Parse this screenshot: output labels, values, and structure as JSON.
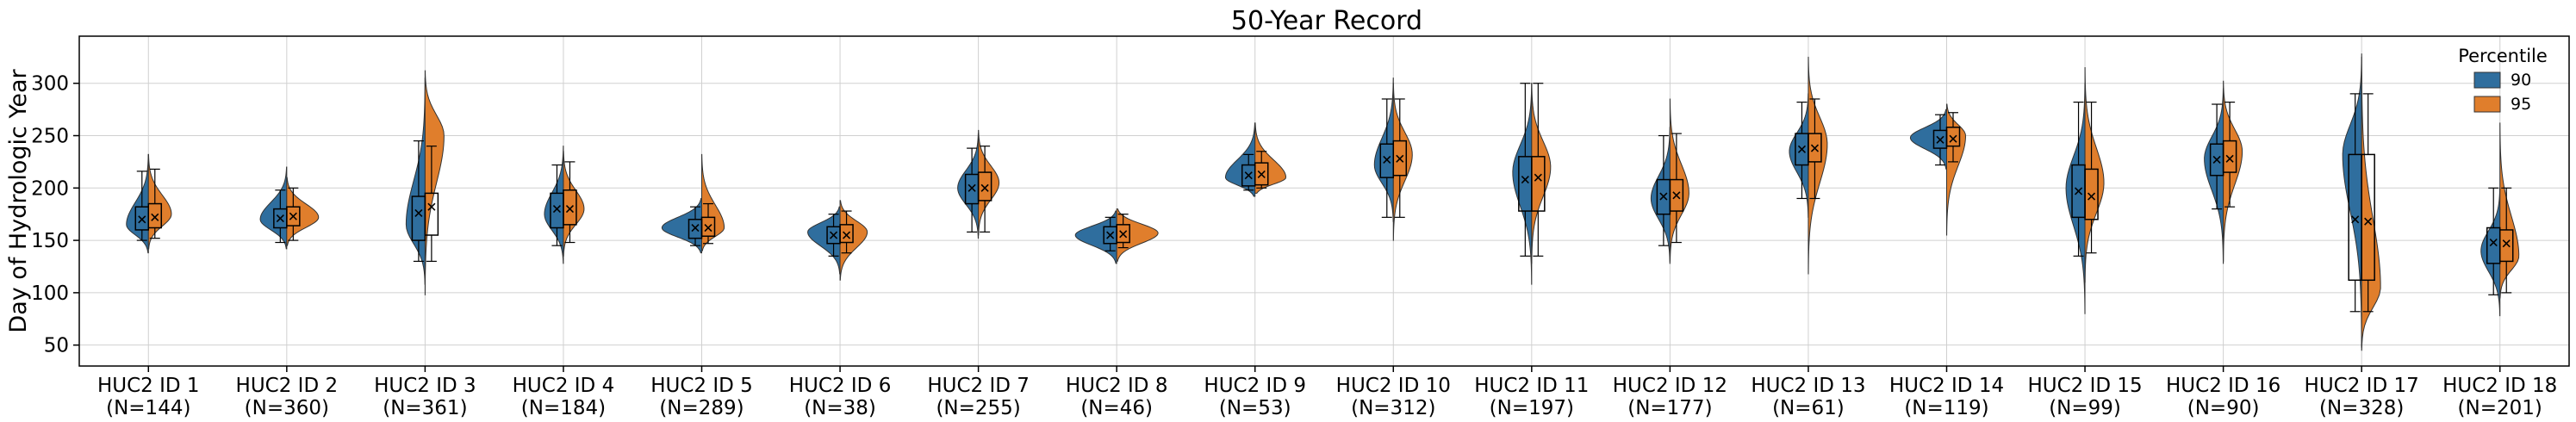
{
  "chart_data": {
    "type": "violin",
    "title": "50-Year Record",
    "xlabel": "",
    "ylabel": "Day of Hydrologic Year",
    "ylim": [
      30,
      345
    ],
    "yticks": [
      50,
      100,
      150,
      200,
      250,
      300
    ],
    "grid": true,
    "legend": {
      "title": "Percentile",
      "placement": "top-right"
    },
    "colors": {
      "90": "#2f6e9e",
      "95": "#e07e2c"
    },
    "categories": [
      {
        "label": "HUC2 ID 1",
        "n": "(N=144)"
      },
      {
        "label": "HUC2 ID 2",
        "n": "(N=360)"
      },
      {
        "label": "HUC2 ID 3",
        "n": "(N=361)"
      },
      {
        "label": "HUC2 ID 4",
        "n": "(N=184)"
      },
      {
        "label": "HUC2 ID 5",
        "n": "(N=289)"
      },
      {
        "label": "HUC2 ID 6",
        "n": "(N=38)"
      },
      {
        "label": "HUC2 ID 7",
        "n": "(N=255)"
      },
      {
        "label": "HUC2 ID 8",
        "n": "(N=46)"
      },
      {
        "label": "HUC2 ID 9",
        "n": "(N=53)"
      },
      {
        "label": "HUC2 ID 10",
        "n": "(N=312)"
      },
      {
        "label": "HUC2 ID 11",
        "n": "(N=197)"
      },
      {
        "label": "HUC2 ID 12",
        "n": "(N=177)"
      },
      {
        "label": "HUC2 ID 13",
        "n": "(N=61)"
      },
      {
        "label": "HUC2 ID 14",
        "n": "(N=119)"
      },
      {
        "label": "HUC2 ID 15",
        "n": "(N=99)"
      },
      {
        "label": "HUC2 ID 16",
        "n": "(N=90)"
      },
      {
        "label": "HUC2 ID 17",
        "n": "(N=328)"
      },
      {
        "label": "HUC2 ID 18",
        "n": "(N=201)"
      }
    ],
    "series": [
      {
        "name": "90",
        "stats": [
          {
            "vmin": 138,
            "vmax": 232,
            "wlo": 150,
            "whi": 216,
            "q1": 160,
            "q3": 182,
            "mean": 170,
            "mode": 165
          },
          {
            "vmin": 142,
            "vmax": 220,
            "wlo": 148,
            "whi": 198,
            "q1": 162,
            "q3": 180,
            "mean": 171,
            "mode": 170
          },
          {
            "vmin": 108,
            "vmax": 305,
            "wlo": 130,
            "whi": 245,
            "q1": 150,
            "q3": 192,
            "mean": 176,
            "mode": 165
          },
          {
            "vmin": 128,
            "vmax": 240,
            "wlo": 145,
            "whi": 222,
            "q1": 162,
            "q3": 195,
            "mean": 180,
            "mode": 175
          },
          {
            "vmin": 138,
            "vmax": 190,
            "wlo": 145,
            "whi": 182,
            "q1": 152,
            "q3": 170,
            "mean": 162,
            "mode": 162
          },
          {
            "vmin": 118,
            "vmax": 182,
            "wlo": 135,
            "whi": 175,
            "q1": 147,
            "q3": 163,
            "mean": 155,
            "mode": 158
          },
          {
            "vmin": 152,
            "vmax": 252,
            "wlo": 158,
            "whi": 238,
            "q1": 185,
            "q3": 213,
            "mean": 200,
            "mode": 200
          },
          {
            "vmin": 128,
            "vmax": 178,
            "wlo": 140,
            "whi": 172,
            "q1": 147,
            "q3": 163,
            "mean": 155,
            "mode": 155
          },
          {
            "vmin": 192,
            "vmax": 262,
            "wlo": 198,
            "whi": 232,
            "q1": 202,
            "q3": 222,
            "mean": 212,
            "mode": 210
          },
          {
            "vmin": 168,
            "vmax": 305,
            "wlo": 172,
            "whi": 285,
            "q1": 210,
            "q3": 242,
            "mean": 227,
            "mode": 222
          },
          {
            "vmin": 108,
            "vmax": 300,
            "wlo": 135,
            "whi": 300,
            "q1": 178,
            "q3": 230,
            "mean": 208,
            "mode": 215
          },
          {
            "vmin": 128,
            "vmax": 258,
            "wlo": 145,
            "whi": 250,
            "q1": 175,
            "q3": 208,
            "mean": 192,
            "mode": 190
          },
          {
            "vmin": 172,
            "vmax": 290,
            "wlo": 190,
            "whi": 282,
            "q1": 222,
            "q3": 252,
            "mean": 237,
            "mode": 235
          },
          {
            "vmin": 218,
            "vmax": 275,
            "wlo": 222,
            "whi": 270,
            "q1": 238,
            "q3": 255,
            "mean": 246,
            "mode": 248
          },
          {
            "vmin": 80,
            "vmax": 300,
            "wlo": 135,
            "whi": 282,
            "q1": 172,
            "q3": 222,
            "mean": 197,
            "mode": 200
          },
          {
            "vmin": 128,
            "vmax": 295,
            "wlo": 180,
            "whi": 280,
            "q1": 212,
            "q3": 242,
            "mean": 227,
            "mode": 228
          },
          {
            "vmin": 48,
            "vmax": 325,
            "wlo": 82,
            "whi": 290,
            "q1": 112,
            "q3": 232,
            "mean": 170,
            "mode": 232
          },
          {
            "vmin": 78,
            "vmax": 200,
            "wlo": 98,
            "whi": 200,
            "q1": 128,
            "q3": 162,
            "mean": 148,
            "mode": 140
          }
        ]
      },
      {
        "name": "95",
        "stats": [
          {
            "vmin": 142,
            "vmax": 232,
            "wlo": 152,
            "whi": 218,
            "q1": 162,
            "q3": 185,
            "mean": 172,
            "mode": 175
          },
          {
            "vmin": 145,
            "vmax": 210,
            "wlo": 150,
            "whi": 200,
            "q1": 164,
            "q3": 182,
            "mean": 173,
            "mode": 172
          },
          {
            "vmin": 98,
            "vmax": 312,
            "wlo": 130,
            "whi": 240,
            "q1": 155,
            "q3": 195,
            "mean": 182,
            "mode": 250
          },
          {
            "vmin": 135,
            "vmax": 235,
            "wlo": 148,
            "whi": 225,
            "q1": 165,
            "q3": 198,
            "mean": 180,
            "mode": 180
          },
          {
            "vmin": 140,
            "vmax": 232,
            "wlo": 147,
            "whi": 185,
            "q1": 154,
            "q3": 172,
            "mean": 162,
            "mode": 162
          },
          {
            "vmin": 112,
            "vmax": 188,
            "wlo": 138,
            "whi": 178,
            "q1": 148,
            "q3": 165,
            "mean": 155,
            "mode": 158
          },
          {
            "vmin": 155,
            "vmax": 255,
            "wlo": 158,
            "whi": 240,
            "q1": 188,
            "q3": 215,
            "mean": 200,
            "mode": 205
          },
          {
            "vmin": 130,
            "vmax": 180,
            "wlo": 143,
            "whi": 175,
            "q1": 148,
            "q3": 165,
            "mean": 156,
            "mode": 157
          },
          {
            "vmin": 195,
            "vmax": 262,
            "wlo": 200,
            "whi": 235,
            "q1": 203,
            "q3": 224,
            "mean": 213,
            "mode": 210
          },
          {
            "vmin": 150,
            "vmax": 300,
            "wlo": 172,
            "whi": 285,
            "q1": 212,
            "q3": 245,
            "mean": 228,
            "mode": 232
          },
          {
            "vmin": 128,
            "vmax": 300,
            "wlo": 135,
            "whi": 300,
            "q1": 178,
            "q3": 230,
            "mean": 210,
            "mode": 220
          },
          {
            "vmin": 130,
            "vmax": 285,
            "wlo": 148,
            "whi": 252,
            "q1": 178,
            "q3": 208,
            "mean": 193,
            "mode": 195
          },
          {
            "vmin": 118,
            "vmax": 325,
            "wlo": 190,
            "whi": 285,
            "q1": 225,
            "q3": 252,
            "mean": 238,
            "mode": 242
          },
          {
            "vmin": 155,
            "vmax": 280,
            "wlo": 225,
            "whi": 272,
            "q1": 240,
            "q3": 258,
            "mean": 247,
            "mode": 250
          },
          {
            "vmin": 110,
            "vmax": 315,
            "wlo": 138,
            "whi": 282,
            "q1": 170,
            "q3": 218,
            "mean": 192,
            "mode": 205
          },
          {
            "vmin": 130,
            "vmax": 302,
            "wlo": 182,
            "whi": 282,
            "q1": 215,
            "q3": 245,
            "mean": 228,
            "mode": 235
          },
          {
            "vmin": 45,
            "vmax": 328,
            "wlo": 82,
            "whi": 290,
            "q1": 112,
            "q3": 232,
            "mean": 168,
            "mode": 105
          },
          {
            "vmin": 95,
            "vmax": 262,
            "wlo": 100,
            "whi": 200,
            "q1": 130,
            "q3": 160,
            "mean": 147,
            "mode": 135
          }
        ]
      }
    ]
  }
}
